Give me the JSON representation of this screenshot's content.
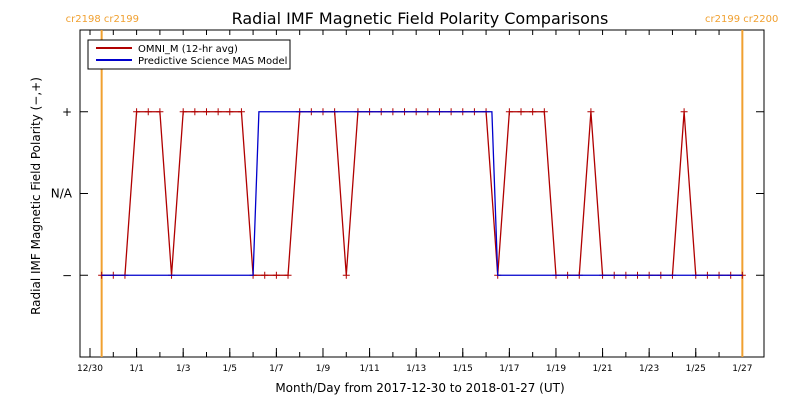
{
  "chart_data": {
    "type": "line",
    "title": "Radial IMF Magnetic Field Polarity Comparisons",
    "xlabel": "Month/Day from 2017-12-30 to 2018-01-27 (UT)",
    "ylabel": "Radial IMF Magnetic Field Polarity (−,+)",
    "xlim": [
      "2017-12-30",
      "2018-01-27"
    ],
    "ylim": [
      -2,
      2
    ],
    "y_ticks": [
      {
        "value": -1,
        "label": "−"
      },
      {
        "value": 0,
        "label": "N/A"
      },
      {
        "value": 1,
        "label": "+"
      }
    ],
    "x_tick_labels": [
      {
        "date": "2017-12-30",
        "label": "12/30"
      },
      {
        "date": "2018-01-01",
        "label": "1/1"
      },
      {
        "date": "2018-01-03",
        "label": "1/3"
      },
      {
        "date": "2018-01-05",
        "label": "1/5"
      },
      {
        "date": "2018-01-07",
        "label": "1/7"
      },
      {
        "date": "2018-01-09",
        "label": "1/9"
      },
      {
        "date": "2018-01-11",
        "label": "1/11"
      },
      {
        "date": "2018-01-13",
        "label": "1/13"
      },
      {
        "date": "2018-01-15",
        "label": "1/15"
      },
      {
        "date": "2018-01-17",
        "label": "1/17"
      },
      {
        "date": "2018-01-19",
        "label": "1/19"
      },
      {
        "date": "2018-01-21",
        "label": "1/21"
      },
      {
        "date": "2018-01-23",
        "label": "1/23"
      },
      {
        "date": "2018-01-25",
        "label": "1/25"
      },
      {
        "date": "2018-01-27",
        "label": "1/27"
      }
    ],
    "carrington_markers": [
      {
        "date": "2017-12-30T12:00",
        "labels": [
          "cr2198",
          "cr2199"
        ]
      },
      {
        "date": "2018-01-27T00:00",
        "labels": [
          "cr2199",
          "cr2200"
        ]
      }
    ],
    "legend_position": "top-left",
    "series": [
      {
        "name": "OMNI_M (12-hr avg)",
        "color": "#b00000",
        "marker": "plus",
        "points": [
          [
            "2017-12-30T12:00",
            -1
          ],
          [
            "2017-12-31T00:00",
            -1
          ],
          [
            "2017-12-31T12:00",
            -1
          ],
          [
            "2018-01-01T00:00",
            1
          ],
          [
            "2018-01-01T12:00",
            1
          ],
          [
            "2018-01-02T00:00",
            1
          ],
          [
            "2018-01-02T12:00",
            -1
          ],
          [
            "2018-01-03T00:00",
            1
          ],
          [
            "2018-01-03T12:00",
            1
          ],
          [
            "2018-01-04T00:00",
            1
          ],
          [
            "2018-01-04T12:00",
            1
          ],
          [
            "2018-01-05T00:00",
            1
          ],
          [
            "2018-01-05T12:00",
            1
          ],
          [
            "2018-01-06T00:00",
            -1
          ],
          [
            "2018-01-06T12:00",
            -1
          ],
          [
            "2018-01-07T00:00",
            -1
          ],
          [
            "2018-01-07T12:00",
            -1
          ],
          [
            "2018-01-08T00:00",
            1
          ],
          [
            "2018-01-08T12:00",
            1
          ],
          [
            "2018-01-09T00:00",
            1
          ],
          [
            "2018-01-09T12:00",
            1
          ],
          [
            "2018-01-10T00:00",
            -1
          ],
          [
            "2018-01-10T12:00",
            1
          ],
          [
            "2018-01-11T00:00",
            1
          ],
          [
            "2018-01-11T12:00",
            1
          ],
          [
            "2018-01-12T00:00",
            1
          ],
          [
            "2018-01-12T12:00",
            1
          ],
          [
            "2018-01-13T00:00",
            1
          ],
          [
            "2018-01-13T12:00",
            1
          ],
          [
            "2018-01-14T00:00",
            1
          ],
          [
            "2018-01-14T12:00",
            1
          ],
          [
            "2018-01-15T00:00",
            1
          ],
          [
            "2018-01-15T12:00",
            1
          ],
          [
            "2018-01-16T00:00",
            1
          ],
          [
            "2018-01-16T12:00",
            -1
          ],
          [
            "2018-01-17T00:00",
            1
          ],
          [
            "2018-01-17T12:00",
            1
          ],
          [
            "2018-01-18T00:00",
            1
          ],
          [
            "2018-01-18T12:00",
            1
          ],
          [
            "2018-01-19T00:00",
            -1
          ],
          [
            "2018-01-19T12:00",
            -1
          ],
          [
            "2018-01-20T00:00",
            -1
          ],
          [
            "2018-01-20T12:00",
            1
          ],
          [
            "2018-01-21T00:00",
            -1
          ],
          [
            "2018-01-21T12:00",
            -1
          ],
          [
            "2018-01-22T00:00",
            -1
          ],
          [
            "2018-01-22T12:00",
            -1
          ],
          [
            "2018-01-23T00:00",
            -1
          ],
          [
            "2018-01-23T12:00",
            -1
          ],
          [
            "2018-01-24T00:00",
            -1
          ],
          [
            "2018-01-24T12:00",
            1
          ],
          [
            "2018-01-25T00:00",
            -1
          ],
          [
            "2018-01-25T12:00",
            -1
          ],
          [
            "2018-01-26T00:00",
            -1
          ],
          [
            "2018-01-26T12:00",
            -1
          ],
          [
            "2018-01-27T00:00",
            -1
          ]
        ]
      },
      {
        "name": "Predictive Science MAS Model",
        "color": "#0000cc",
        "marker": "none",
        "points": [
          [
            "2017-12-30T12:00",
            -1
          ],
          [
            "2018-01-06T00:00",
            -1
          ],
          [
            "2018-01-06T06:00",
            1
          ],
          [
            "2018-01-16T06:00",
            1
          ],
          [
            "2018-01-16T12:00",
            -1
          ],
          [
            "2018-01-27T00:00",
            -1
          ]
        ]
      }
    ]
  }
}
